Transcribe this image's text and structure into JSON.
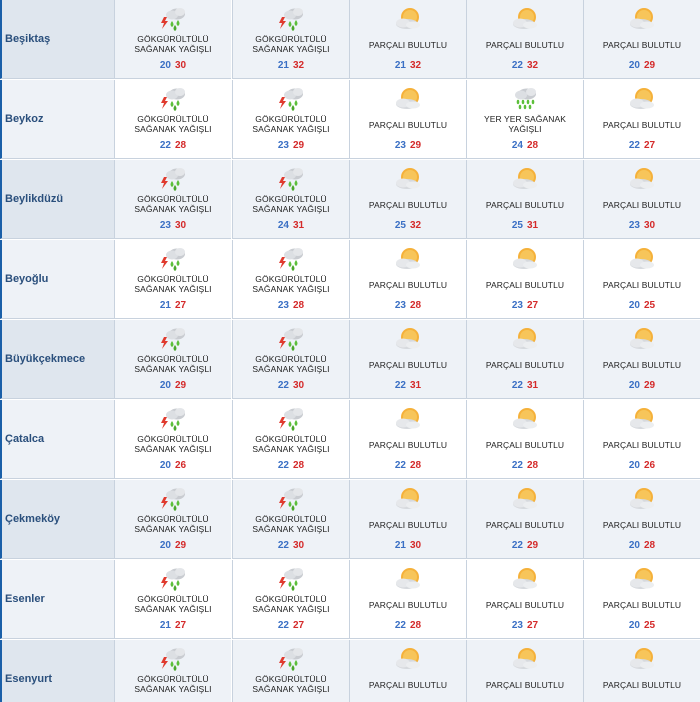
{
  "colors": {
    "accent": "#1a5fa8",
    "min_temp": "#3a6fc4",
    "max_temp": "#d42a2a",
    "stripe": "#eef2f7"
  },
  "rows": [
    {
      "city": "Beşiktaş",
      "days": [
        {
          "icon": "thunderstorm-icon",
          "lines": [
            "GÖKGÜRÜLTÜLÜ",
            "SAĞANAK YAĞIŞLI"
          ],
          "min": "20",
          "max": "30"
        },
        {
          "icon": "thunderstorm-icon",
          "lines": [
            "GÖKGÜRÜLTÜLÜ",
            "SAĞANAK YAĞIŞLI"
          ],
          "min": "21",
          "max": "32"
        },
        {
          "icon": "partly-cloudy-icon",
          "lines": [
            "PARÇALI BULUTLU"
          ],
          "min": "21",
          "max": "32"
        },
        {
          "icon": "partly-cloudy-icon",
          "lines": [
            "PARÇALI BULUTLU"
          ],
          "min": "22",
          "max": "32"
        },
        {
          "icon": "partly-cloudy-icon",
          "lines": [
            "PARÇALI BULUTLU"
          ],
          "min": "20",
          "max": "29"
        }
      ]
    },
    {
      "city": "Beykoz",
      "days": [
        {
          "icon": "thunderstorm-icon",
          "lines": [
            "GÖKGÜRÜLTÜLÜ",
            "SAĞANAK YAĞIŞLI"
          ],
          "min": "22",
          "max": "28"
        },
        {
          "icon": "thunderstorm-icon",
          "lines": [
            "GÖKGÜRÜLTÜLÜ",
            "SAĞANAK YAĞIŞLI"
          ],
          "min": "23",
          "max": "29"
        },
        {
          "icon": "partly-cloudy-icon",
          "lines": [
            "PARÇALI BULUTLU"
          ],
          "min": "23",
          "max": "29"
        },
        {
          "icon": "showers-icon",
          "lines": [
            "YER YER SAĞANAK",
            "YAĞIŞLI"
          ],
          "min": "24",
          "max": "28"
        },
        {
          "icon": "partly-cloudy-icon",
          "lines": [
            "PARÇALI BULUTLU"
          ],
          "min": "22",
          "max": "27"
        }
      ]
    },
    {
      "city": "Beylikdüzü",
      "days": [
        {
          "icon": "thunderstorm-icon",
          "lines": [
            "GÖKGÜRÜLTÜLÜ",
            "SAĞANAK YAĞIŞLI"
          ],
          "min": "23",
          "max": "30"
        },
        {
          "icon": "thunderstorm-icon",
          "lines": [
            "GÖKGÜRÜLTÜLÜ",
            "SAĞANAK YAĞIŞLI"
          ],
          "min": "24",
          "max": "31"
        },
        {
          "icon": "partly-cloudy-icon",
          "lines": [
            "PARÇALI BULUTLU"
          ],
          "min": "25",
          "max": "32"
        },
        {
          "icon": "partly-cloudy-icon",
          "lines": [
            "PARÇALI BULUTLU"
          ],
          "min": "25",
          "max": "31"
        },
        {
          "icon": "partly-cloudy-icon",
          "lines": [
            "PARÇALI BULUTLU"
          ],
          "min": "23",
          "max": "30"
        }
      ]
    },
    {
      "city": "Beyoğlu",
      "days": [
        {
          "icon": "thunderstorm-icon",
          "lines": [
            "GÖKGÜRÜLTÜLÜ",
            "SAĞANAK YAĞIŞLI"
          ],
          "min": "21",
          "max": "27"
        },
        {
          "icon": "thunderstorm-icon",
          "lines": [
            "GÖKGÜRÜLTÜLÜ",
            "SAĞANAK YAĞIŞLI"
          ],
          "min": "23",
          "max": "28"
        },
        {
          "icon": "partly-cloudy-icon",
          "lines": [
            "PARÇALI BULUTLU"
          ],
          "min": "23",
          "max": "28"
        },
        {
          "icon": "partly-cloudy-icon",
          "lines": [
            "PARÇALI BULUTLU"
          ],
          "min": "23",
          "max": "27"
        },
        {
          "icon": "partly-cloudy-icon",
          "lines": [
            "PARÇALI BULUTLU"
          ],
          "min": "20",
          "max": "25"
        }
      ]
    },
    {
      "city": "Büyükçekmece",
      "days": [
        {
          "icon": "thunderstorm-icon",
          "lines": [
            "GÖKGÜRÜLTÜLÜ",
            "SAĞANAK YAĞIŞLI"
          ],
          "min": "20",
          "max": "29"
        },
        {
          "icon": "thunderstorm-icon",
          "lines": [
            "GÖKGÜRÜLTÜLÜ",
            "SAĞANAK YAĞIŞLI"
          ],
          "min": "22",
          "max": "30"
        },
        {
          "icon": "partly-cloudy-icon",
          "lines": [
            "PARÇALI BULUTLU"
          ],
          "min": "22",
          "max": "31"
        },
        {
          "icon": "partly-cloudy-icon",
          "lines": [
            "PARÇALI BULUTLU"
          ],
          "min": "22",
          "max": "31"
        },
        {
          "icon": "partly-cloudy-icon",
          "lines": [
            "PARÇALI BULUTLU"
          ],
          "min": "20",
          "max": "29"
        }
      ]
    },
    {
      "city": "Çatalca",
      "days": [
        {
          "icon": "thunderstorm-icon",
          "lines": [
            "GÖKGÜRÜLTÜLÜ",
            "SAĞANAK YAĞIŞLI"
          ],
          "min": "20",
          "max": "26"
        },
        {
          "icon": "thunderstorm-icon",
          "lines": [
            "GÖKGÜRÜLTÜLÜ",
            "SAĞANAK YAĞIŞLI"
          ],
          "min": "22",
          "max": "28"
        },
        {
          "icon": "partly-cloudy-icon",
          "lines": [
            "PARÇALI BULUTLU"
          ],
          "min": "22",
          "max": "28"
        },
        {
          "icon": "partly-cloudy-icon",
          "lines": [
            "PARÇALI BULUTLU"
          ],
          "min": "22",
          "max": "28"
        },
        {
          "icon": "partly-cloudy-icon",
          "lines": [
            "PARÇALI BULUTLU"
          ],
          "min": "20",
          "max": "26"
        }
      ]
    },
    {
      "city": "Çekmeköy",
      "days": [
        {
          "icon": "thunderstorm-icon",
          "lines": [
            "GÖKGÜRÜLTÜLÜ",
            "SAĞANAK YAĞIŞLI"
          ],
          "min": "20",
          "max": "29"
        },
        {
          "icon": "thunderstorm-icon",
          "lines": [
            "GÖKGÜRÜLTÜLÜ",
            "SAĞANAK YAĞIŞLI"
          ],
          "min": "22",
          "max": "30"
        },
        {
          "icon": "partly-cloudy-icon",
          "lines": [
            "PARÇALI BULUTLU"
          ],
          "min": "21",
          "max": "30"
        },
        {
          "icon": "partly-cloudy-icon",
          "lines": [
            "PARÇALI BULUTLU"
          ],
          "min": "22",
          "max": "29"
        },
        {
          "icon": "partly-cloudy-icon",
          "lines": [
            "PARÇALI BULUTLU"
          ],
          "min": "20",
          "max": "28"
        }
      ]
    },
    {
      "city": "Esenler",
      "days": [
        {
          "icon": "thunderstorm-icon",
          "lines": [
            "GÖKGÜRÜLTÜLÜ",
            "SAĞANAK YAĞIŞLI"
          ],
          "min": "21",
          "max": "27"
        },
        {
          "icon": "thunderstorm-icon",
          "lines": [
            "GÖKGÜRÜLTÜLÜ",
            "SAĞANAK YAĞIŞLI"
          ],
          "min": "22",
          "max": "27"
        },
        {
          "icon": "partly-cloudy-icon",
          "lines": [
            "PARÇALI BULUTLU"
          ],
          "min": "22",
          "max": "28"
        },
        {
          "icon": "partly-cloudy-icon",
          "lines": [
            "PARÇALI BULUTLU"
          ],
          "min": "23",
          "max": "27"
        },
        {
          "icon": "partly-cloudy-icon",
          "lines": [
            "PARÇALI BULUTLU"
          ],
          "min": "20",
          "max": "25"
        }
      ]
    },
    {
      "city": "Esenyurt",
      "days": [
        {
          "icon": "thunderstorm-icon",
          "lines": [
            "GÖKGÜRÜLTÜLÜ",
            "SAĞANAK YAĞIŞLI"
          ],
          "min": "",
          "max": ""
        },
        {
          "icon": "thunderstorm-icon",
          "lines": [
            "GÖKGÜRÜLTÜLÜ",
            "SAĞANAK YAĞIŞLI"
          ],
          "min": "",
          "max": ""
        },
        {
          "icon": "partly-cloudy-icon",
          "lines": [
            "PARÇALI BULUTLU"
          ],
          "min": "",
          "max": ""
        },
        {
          "icon": "partly-cloudy-icon",
          "lines": [
            "PARÇALI BULUTLU"
          ],
          "min": "",
          "max": ""
        },
        {
          "icon": "partly-cloudy-icon",
          "lines": [
            "PARÇALI BULUTLU"
          ],
          "min": "",
          "max": ""
        }
      ]
    }
  ]
}
